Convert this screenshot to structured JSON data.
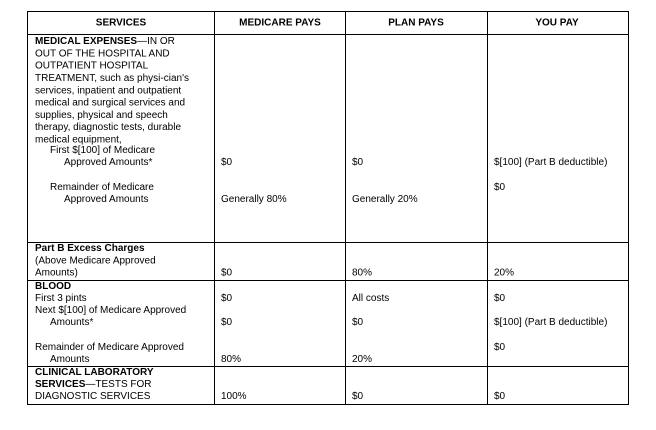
{
  "table": {
    "header": [
      "SERVICES",
      "MEDICARE PAYS",
      "PLAN PAYS",
      "YOU PAY"
    ],
    "rows": [
      {
        "heading": [
          "MEDICAL EXPENSES"
        ],
        "description": [
          "—IN OR",
          "OUT OF THE HOSPITAL AND",
          "OUTPATIENT HOSPITAL",
          "TREATMENT, such as physi-cian's",
          "services, inpatient and outpatient",
          "medical and surgical services and",
          "supplies, physical and speech",
          "therapy, diagnostic tests, durable",
          "medical equipment,"
        ],
        "items": [
          {
            "label": [
              "First $[100] of Medicare",
              "Approved Amounts*"
            ],
            "medicare": "$0",
            "plan": "$0",
            "you": "$[100] (Part B deductible)"
          },
          {
            "label": [
              "Remainder of Medicare",
              "Approved Amounts"
            ],
            "medicare": "Generally 80%",
            "plan": "Generally 20%",
            "you": "$0"
          }
        ]
      },
      {
        "heading": [
          "Part B Excess Charges"
        ],
        "description": [
          "(Above Medicare Approved",
          "Amounts)"
        ],
        "items": [
          {
            "medicare": "$0",
            "plan": "80%",
            "you": "20%"
          }
        ]
      },
      {
        "heading": [
          "BLOOD"
        ],
        "items": [
          {
            "label": [
              "First 3 pints"
            ],
            "medicare": "$0",
            "plan": "All costs",
            "you": "$0"
          },
          {
            "label": [
              "Next $[100] of Medicare Approved",
              "Amounts*"
            ],
            "medicare": "$0",
            "plan": "$0",
            "you": "$[100] (Part B deductible)"
          },
          {
            "label": [
              "Remainder of Medicare Approved",
              "Amounts"
            ],
            "medicare": "80%",
            "plan": "20%",
            "you": "$0"
          }
        ]
      },
      {
        "heading": [
          "CLINICAL LABORATORY",
          "SERVICES"
        ],
        "description": [
          "—TESTS FOR",
          "DIAGNOSTIC SERVICES"
        ],
        "items": [
          {
            "medicare": "100%",
            "plan": "$0",
            "you": "$0"
          }
        ]
      }
    ]
  }
}
